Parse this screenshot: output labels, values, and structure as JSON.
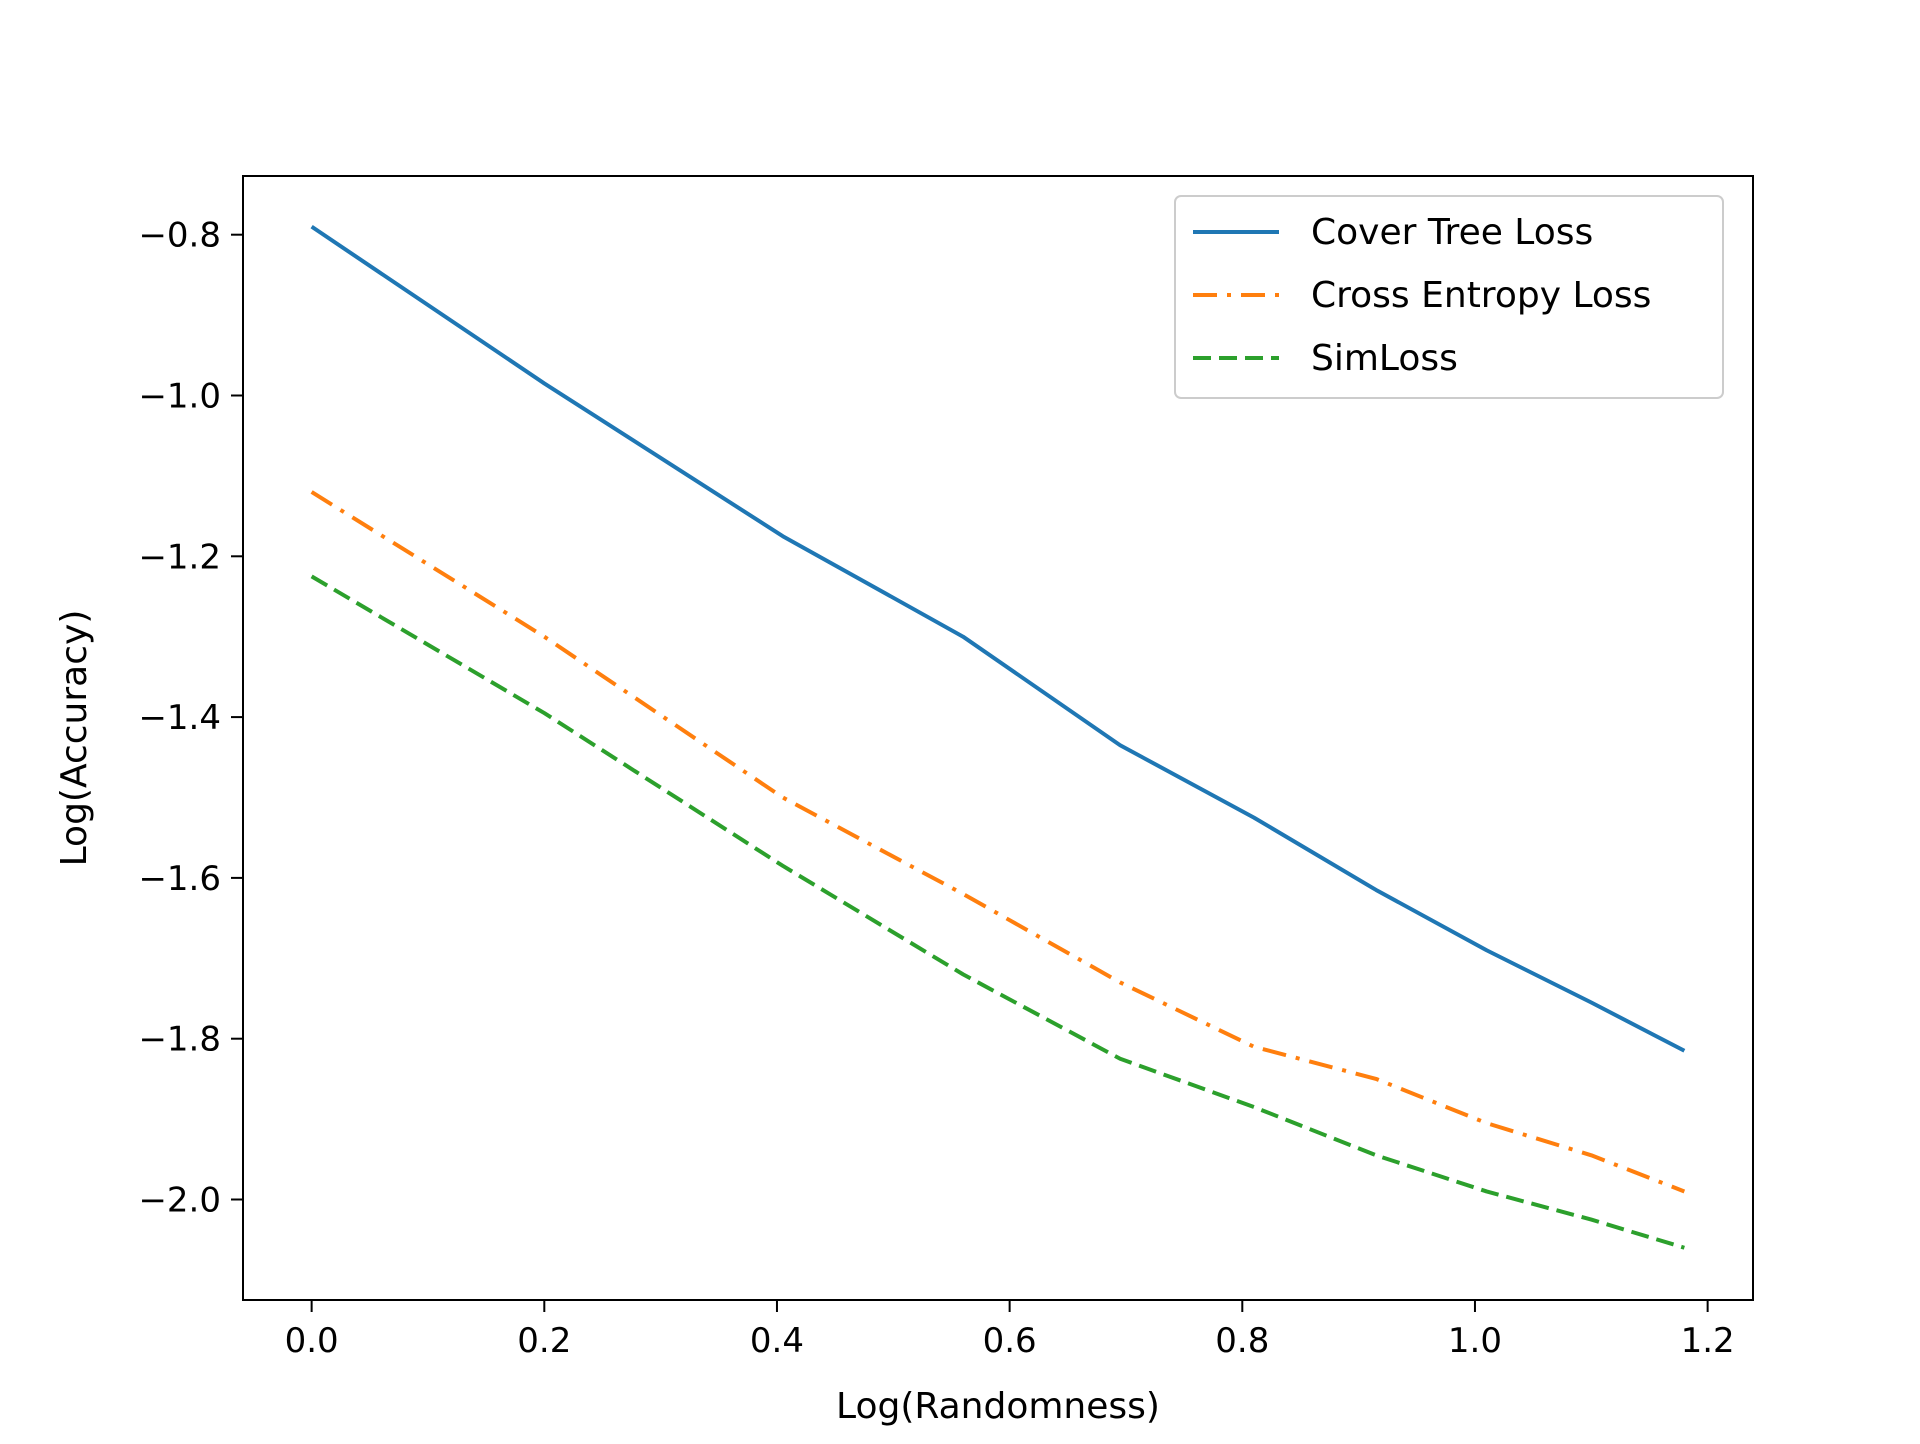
{
  "chart_data": {
    "type": "line",
    "title": "",
    "xlabel": "Log(Randomness)",
    "ylabel": "Log(Accuracy)",
    "xlim": [
      -0.059,
      1.239
    ],
    "ylim": [
      -2.125,
      -0.727
    ],
    "xticks": [
      0.0,
      0.2,
      0.4,
      0.6,
      0.8,
      1.0,
      1.2
    ],
    "xtick_labels": [
      "0.0",
      "0.2",
      "0.4",
      "0.6",
      "0.8",
      "1.0",
      "1.2"
    ],
    "yticks": [
      -0.8,
      -1.0,
      -1.2,
      -1.4,
      -1.6,
      -1.8,
      -2.0
    ],
    "ytick_labels": [
      "−0.8",
      "−1.0",
      "−1.2",
      "−1.4",
      "−1.6",
      "−1.8",
      "−2.0"
    ],
    "grid": false,
    "legend_position": "top-right",
    "x": [
      0.0,
      0.2,
      0.405,
      0.56,
      0.695,
      0.81,
      0.915,
      1.01,
      1.1,
      1.18
    ],
    "series": [
      {
        "name": "Cover Tree Loss",
        "color": "#1f77b4",
        "style": "solid",
        "values": [
          -0.79,
          -0.985,
          -1.175,
          -1.3,
          -1.435,
          -1.525,
          -1.615,
          -1.69,
          -1.755,
          -1.815
        ]
      },
      {
        "name": "Cross Entropy Loss",
        "color": "#ff7f0e",
        "style": "dashdot",
        "values": [
          -1.12,
          -1.3,
          -1.5,
          -1.62,
          -1.73,
          -1.81,
          -1.85,
          -1.905,
          -1.945,
          -1.99
        ]
      },
      {
        "name": "SimLoss",
        "color": "#2ca02c",
        "style": "dashed",
        "values": [
          -1.225,
          -1.395,
          -1.585,
          -1.72,
          -1.825,
          -1.885,
          -1.945,
          -1.99,
          -2.025,
          -2.06
        ]
      }
    ]
  }
}
